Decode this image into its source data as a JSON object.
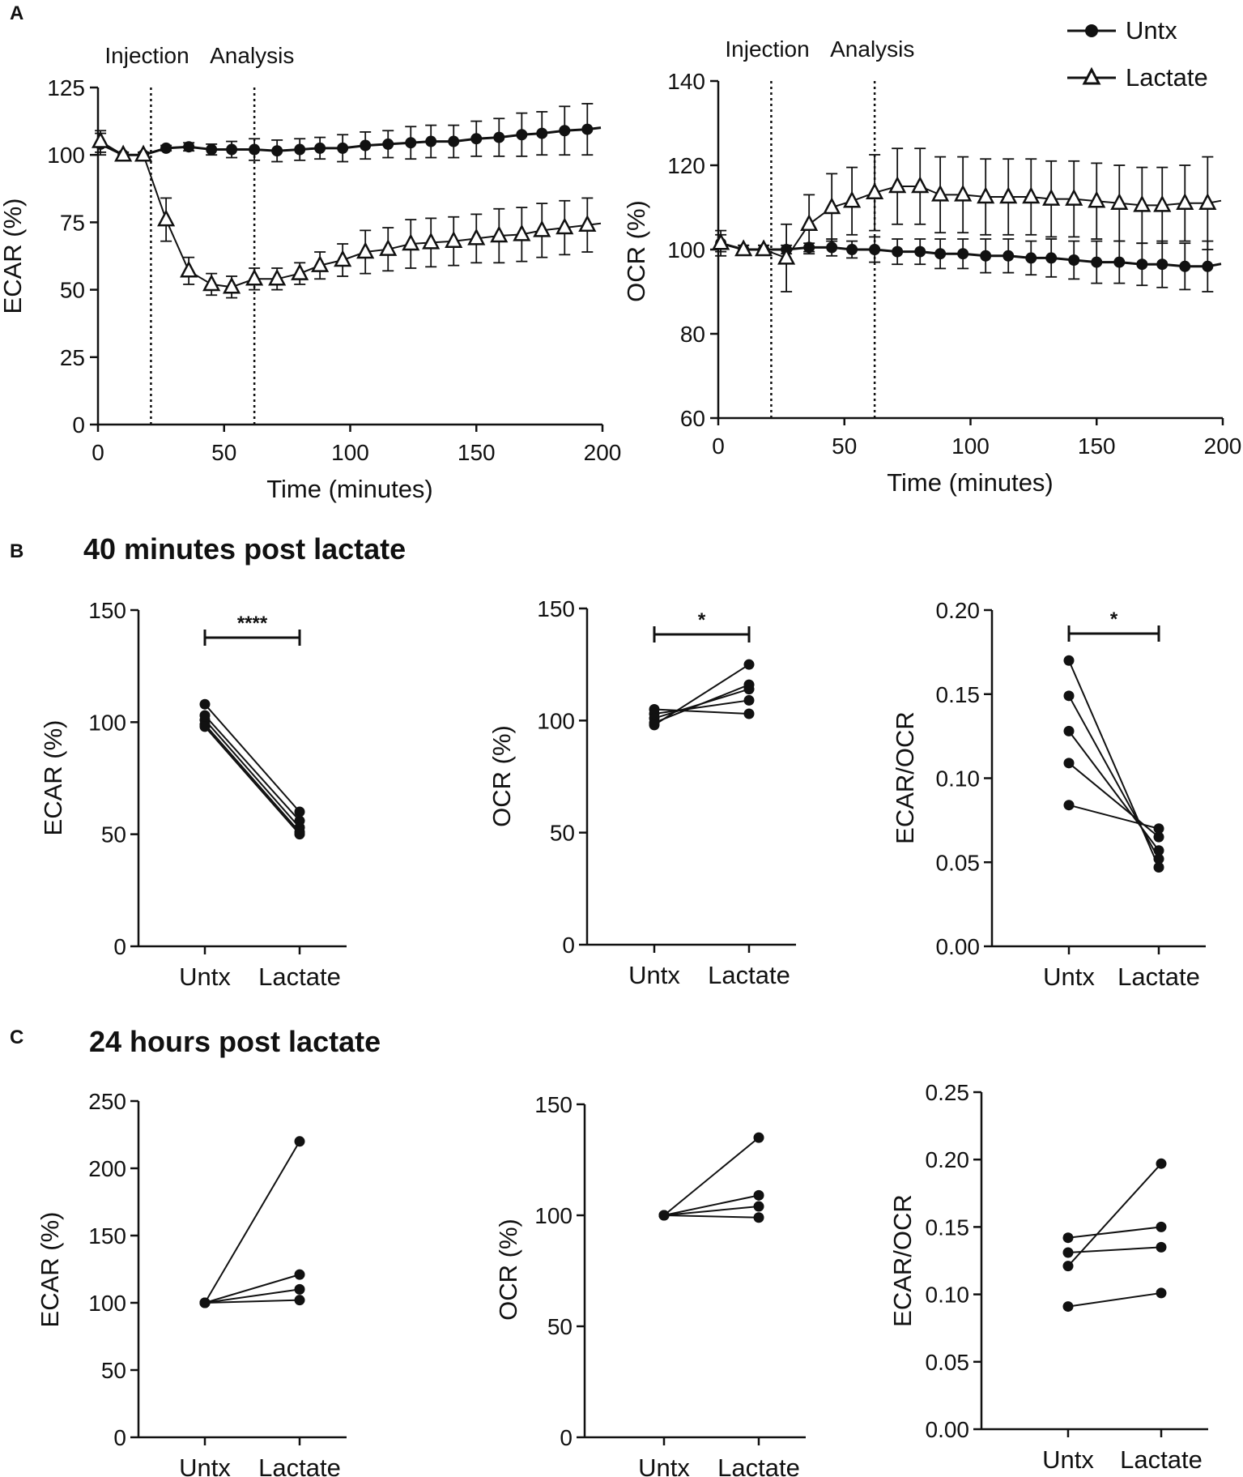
{
  "panels": {
    "a": "A",
    "b": "B",
    "c": "C"
  },
  "sections": {
    "b_title": "40 minutes post lactate",
    "c_title": "24 hours post lactate"
  },
  "legend": [
    {
      "name": "Untx",
      "marker": "filled-circle"
    },
    {
      "name": "Lactate",
      "marker": "open-triangle"
    }
  ],
  "colors": {
    "ink": "#111111",
    "background": "#ffffff"
  },
  "chart_data": [
    {
      "id": "A1",
      "type": "line",
      "xlabel": "Time (minutes)",
      "ylabel": "ECAR (%)",
      "xlim": [
        0,
        200
      ],
      "ylim": [
        0,
        125
      ],
      "xticks": [
        0,
        50,
        100,
        150,
        200
      ],
      "xtick_labels": [
        "0",
        "50",
        "100",
        "150",
        "200"
      ],
      "yticks": [
        0,
        25,
        50,
        75,
        100,
        125
      ],
      "ytick_labels": [
        "0",
        "25",
        "50",
        "75",
        "100",
        "125"
      ],
      "vlines": [
        21,
        62
      ],
      "annotations": [
        "Injection",
        "Analysis"
      ],
      "series": [
        {
          "name": "Untx",
          "marker": "circle",
          "x": [
            1,
            10,
            18,
            27,
            36,
            45,
            53,
            62,
            71,
            80,
            88,
            97,
            106,
            115,
            124,
            132,
            141,
            150,
            159,
            168,
            176,
            185,
            194
          ],
          "y": [
            104,
            100,
            100,
            102.5,
            103,
            102,
            102,
            102,
            101.5,
            102,
            102.5,
            102.5,
            103.5,
            104,
            104.5,
            105,
            105,
            106,
            106.5,
            107.5,
            108,
            109,
            109.5
          ],
          "err": [
            4,
            1,
            1,
            1,
            1.5,
            2,
            3,
            4,
            4,
            4,
            4,
            5,
            5,
            5,
            6,
            6,
            6,
            6.5,
            7,
            8,
            8,
            9,
            9.5
          ]
        },
        {
          "name": "Lactate",
          "marker": "triangle",
          "x": [
            1,
            10,
            18,
            27,
            36,
            45,
            53,
            62,
            71,
            80,
            88,
            97,
            106,
            115,
            124,
            132,
            141,
            150,
            159,
            168,
            176,
            185,
            194
          ],
          "y": [
            105,
            100,
            100,
            76,
            57,
            52,
            51,
            54,
            54,
            56,
            59,
            61,
            64,
            65,
            67,
            67.5,
            68,
            69,
            70,
            70.5,
            72,
            73,
            74
          ],
          "err": [
            4,
            1,
            1,
            8,
            5,
            4,
            4,
            4,
            4,
            4,
            5,
            6,
            8,
            8,
            9,
            9,
            9,
            9,
            10,
            10,
            10,
            10,
            10
          ]
        }
      ]
    },
    {
      "id": "A2",
      "type": "line",
      "xlabel": "Time (minutes)",
      "ylabel": "OCR (%)",
      "xlim": [
        0,
        200
      ],
      "ylim": [
        60,
        140
      ],
      "xticks": [
        0,
        50,
        100,
        150,
        200
      ],
      "xtick_labels": [
        "0",
        "50",
        "100",
        "150",
        "200"
      ],
      "yticks": [
        60,
        80,
        100,
        120,
        140
      ],
      "ytick_labels": [
        "60",
        "80",
        "100",
        "120",
        "140"
      ],
      "vlines": [
        21,
        62
      ],
      "annotations": [
        "Injection",
        "Analysis"
      ],
      "series": [
        {
          "name": "Untx",
          "marker": "circle",
          "x": [
            1,
            10,
            18,
            27,
            36,
            45,
            53,
            62,
            71,
            80,
            88,
            97,
            106,
            115,
            124,
            132,
            141,
            150,
            159,
            168,
            176,
            185,
            194
          ],
          "y": [
            101.5,
            100,
            100,
            100,
            100.5,
            100.5,
            100,
            100,
            99.5,
            99.5,
            99,
            99,
            98.5,
            98.5,
            98,
            98,
            97.5,
            97,
            97,
            96.5,
            96.5,
            96,
            96
          ],
          "err": [
            2,
            1,
            1,
            1,
            1,
            2,
            2,
            3,
            3,
            3,
            3.5,
            3.5,
            4,
            4,
            4,
            4.5,
            4.5,
            5,
            5,
            5,
            5.5,
            5.5,
            6
          ]
        },
        {
          "name": "Lactate",
          "marker": "triangle",
          "x": [
            1,
            10,
            18,
            27,
            36,
            45,
            53,
            62,
            71,
            80,
            88,
            97,
            106,
            115,
            124,
            132,
            141,
            150,
            159,
            168,
            176,
            185,
            194
          ],
          "y": [
            101.5,
            100,
            100,
            98,
            106,
            110,
            111.5,
            113.5,
            115,
            115,
            113,
            113,
            112.5,
            112.5,
            112.5,
            112,
            112,
            111.5,
            111,
            110.5,
            110.5,
            111,
            111
          ],
          "err": [
            3,
            1,
            1,
            8,
            7,
            8,
            8,
            9,
            9,
            9,
            9,
            9,
            9,
            9,
            9,
            9,
            9,
            9,
            9,
            9,
            9,
            9,
            11
          ]
        }
      ]
    },
    {
      "id": "B1",
      "type": "paired",
      "categories": [
        "Untx",
        "Lactate"
      ],
      "ylabel": "ECAR (%)",
      "ylim": [
        0,
        150
      ],
      "yticks": [
        0,
        50,
        100,
        150
      ],
      "ytick_labels": [
        "0",
        "50",
        "100",
        "150"
      ],
      "significance": "****",
      "pairs": [
        [
          108,
          60
        ],
        [
          103,
          56
        ],
        [
          101,
          53
        ],
        [
          99,
          51
        ],
        [
          98,
          50
        ]
      ]
    },
    {
      "id": "B2",
      "type": "paired",
      "categories": [
        "Untx",
        "Lactate"
      ],
      "ylabel": "OCR (%)",
      "ylim": [
        0,
        150
      ],
      "yticks": [
        0,
        50,
        100,
        150
      ],
      "ytick_labels": [
        "0",
        "50",
        "100",
        "150"
      ],
      "significance": "*",
      "pairs": [
        [
          105,
          103
        ],
        [
          103,
          109
        ],
        [
          101,
          114
        ],
        [
          99,
          116
        ],
        [
          98,
          125
        ]
      ]
    },
    {
      "id": "B3",
      "type": "paired",
      "categories": [
        "Untx",
        "Lactate"
      ],
      "ylabel": "ECAR/OCR",
      "ylim": [
        0,
        0.2
      ],
      "yticks": [
        0,
        0.05,
        0.1,
        0.15,
        0.2
      ],
      "ytick_labels": [
        "0.00",
        "0.05",
        "0.10",
        "0.15",
        "0.20"
      ],
      "significance": "*",
      "pairs": [
        [
          0.17,
          0.047
        ],
        [
          0.149,
          0.052
        ],
        [
          0.128,
          0.057
        ],
        [
          0.109,
          0.065
        ],
        [
          0.084,
          0.07
        ]
      ]
    },
    {
      "id": "C1",
      "type": "paired",
      "categories": [
        "Untx",
        "Lactate"
      ],
      "ylabel": "ECAR (%)",
      "ylim": [
        0,
        250
      ],
      "yticks": [
        0,
        50,
        100,
        150,
        200,
        250
      ],
      "ytick_labels": [
        "0",
        "50",
        "100",
        "150",
        "200",
        "250"
      ],
      "significance": "",
      "pairs": [
        [
          100,
          220
        ],
        [
          100,
          121
        ],
        [
          100,
          110
        ],
        [
          100,
          102
        ]
      ]
    },
    {
      "id": "C2",
      "type": "paired",
      "categories": [
        "Untx",
        "Lactate"
      ],
      "ylabel": "OCR (%)",
      "ylim": [
        0,
        150
      ],
      "yticks": [
        0,
        50,
        100,
        150
      ],
      "ytick_labels": [
        "0",
        "50",
        "100",
        "150"
      ],
      "significance": "",
      "pairs": [
        [
          100,
          135
        ],
        [
          100,
          109
        ],
        [
          100,
          104
        ],
        [
          100,
          99
        ]
      ]
    },
    {
      "id": "C3",
      "type": "paired",
      "categories": [
        "Untx",
        "Lactate"
      ],
      "ylabel": "ECAR/OCR",
      "ylim": [
        0,
        0.25
      ],
      "yticks": [
        0,
        0.05,
        0.1,
        0.15,
        0.2,
        0.25
      ],
      "ytick_labels": [
        "0.00",
        "0.05",
        "0.10",
        "0.15",
        "0.20",
        "0.25"
      ],
      "significance": "",
      "pairs": [
        [
          0.142,
          0.15
        ],
        [
          0.131,
          0.135
        ],
        [
          0.121,
          0.197
        ],
        [
          0.091,
          0.101
        ]
      ]
    }
  ]
}
